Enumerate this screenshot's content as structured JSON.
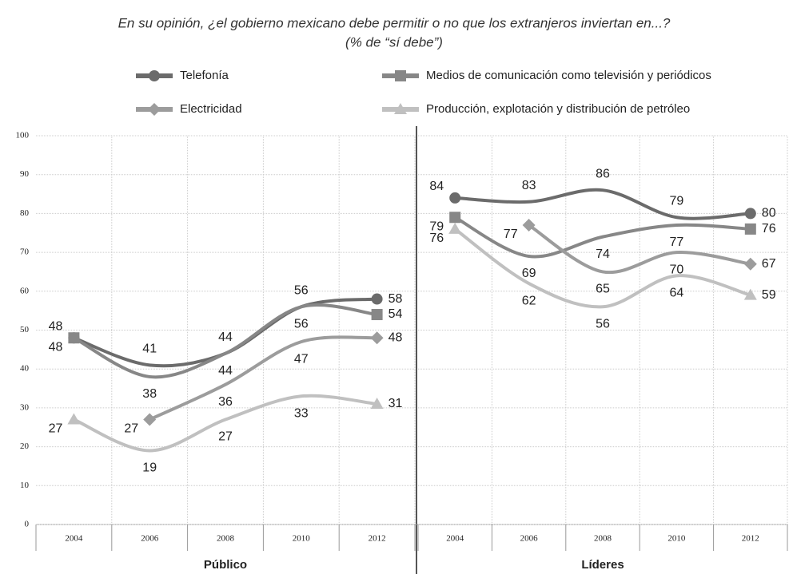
{
  "chart_data": [
    {
      "type": "line",
      "title": "En su opinión, ¿el gobierno mexicano debe permitir o no que los extranjeros inviertan en...?",
      "subtitle": "(% de “sí debe”)",
      "xlabel": "Público",
      "categories": [
        "2004",
        "2006",
        "2008",
        "2010",
        "2012"
      ],
      "ylim": [
        0,
        100
      ],
      "yticks": [
        0,
        10,
        20,
        30,
        40,
        50,
        60,
        70,
        80,
        90,
        100
      ],
      "grid": true,
      "series": [
        {
          "name": "Telefonía",
          "color": "#6b6b6b",
          "values": [
            48,
            41,
            44,
            56,
            58
          ]
        },
        {
          "name": "Medios de comunicación como televisión y periódicos",
          "color": "#878787",
          "values": [
            48,
            38,
            44,
            56,
            54
          ]
        },
        {
          "name": "Electricidad",
          "color": "#9c9c9c",
          "values": [
            null,
            27,
            36,
            47,
            48
          ]
        },
        {
          "name": "Producción, explotación y distribución de petróleo",
          "color": "#c0c0c0",
          "values": [
            27,
            19,
            27,
            33,
            31
          ]
        }
      ]
    },
    {
      "type": "line",
      "xlabel": "Líderes",
      "categories": [
        "2004",
        "2006",
        "2008",
        "2010",
        "2012"
      ],
      "ylim": [
        0,
        100
      ],
      "yticks": [
        0,
        10,
        20,
        30,
        40,
        50,
        60,
        70,
        80,
        90,
        100
      ],
      "grid": true,
      "series": [
        {
          "name": "Telefonía",
          "color": "#6b6b6b",
          "values": [
            84,
            83,
            86,
            79,
            80
          ]
        },
        {
          "name": "Medios de comunicación como televisión y periódicos",
          "color": "#878787",
          "values": [
            79,
            69,
            74,
            77,
            76
          ]
        },
        {
          "name": "Electricidad",
          "color": "#9c9c9c",
          "values": [
            null,
            77,
            65,
            70,
            67
          ]
        },
        {
          "name": "Producción, explotación y distribución de petróleo",
          "color": "#c0c0c0",
          "values": [
            76,
            62,
            56,
            64,
            59
          ]
        }
      ]
    }
  ]
}
